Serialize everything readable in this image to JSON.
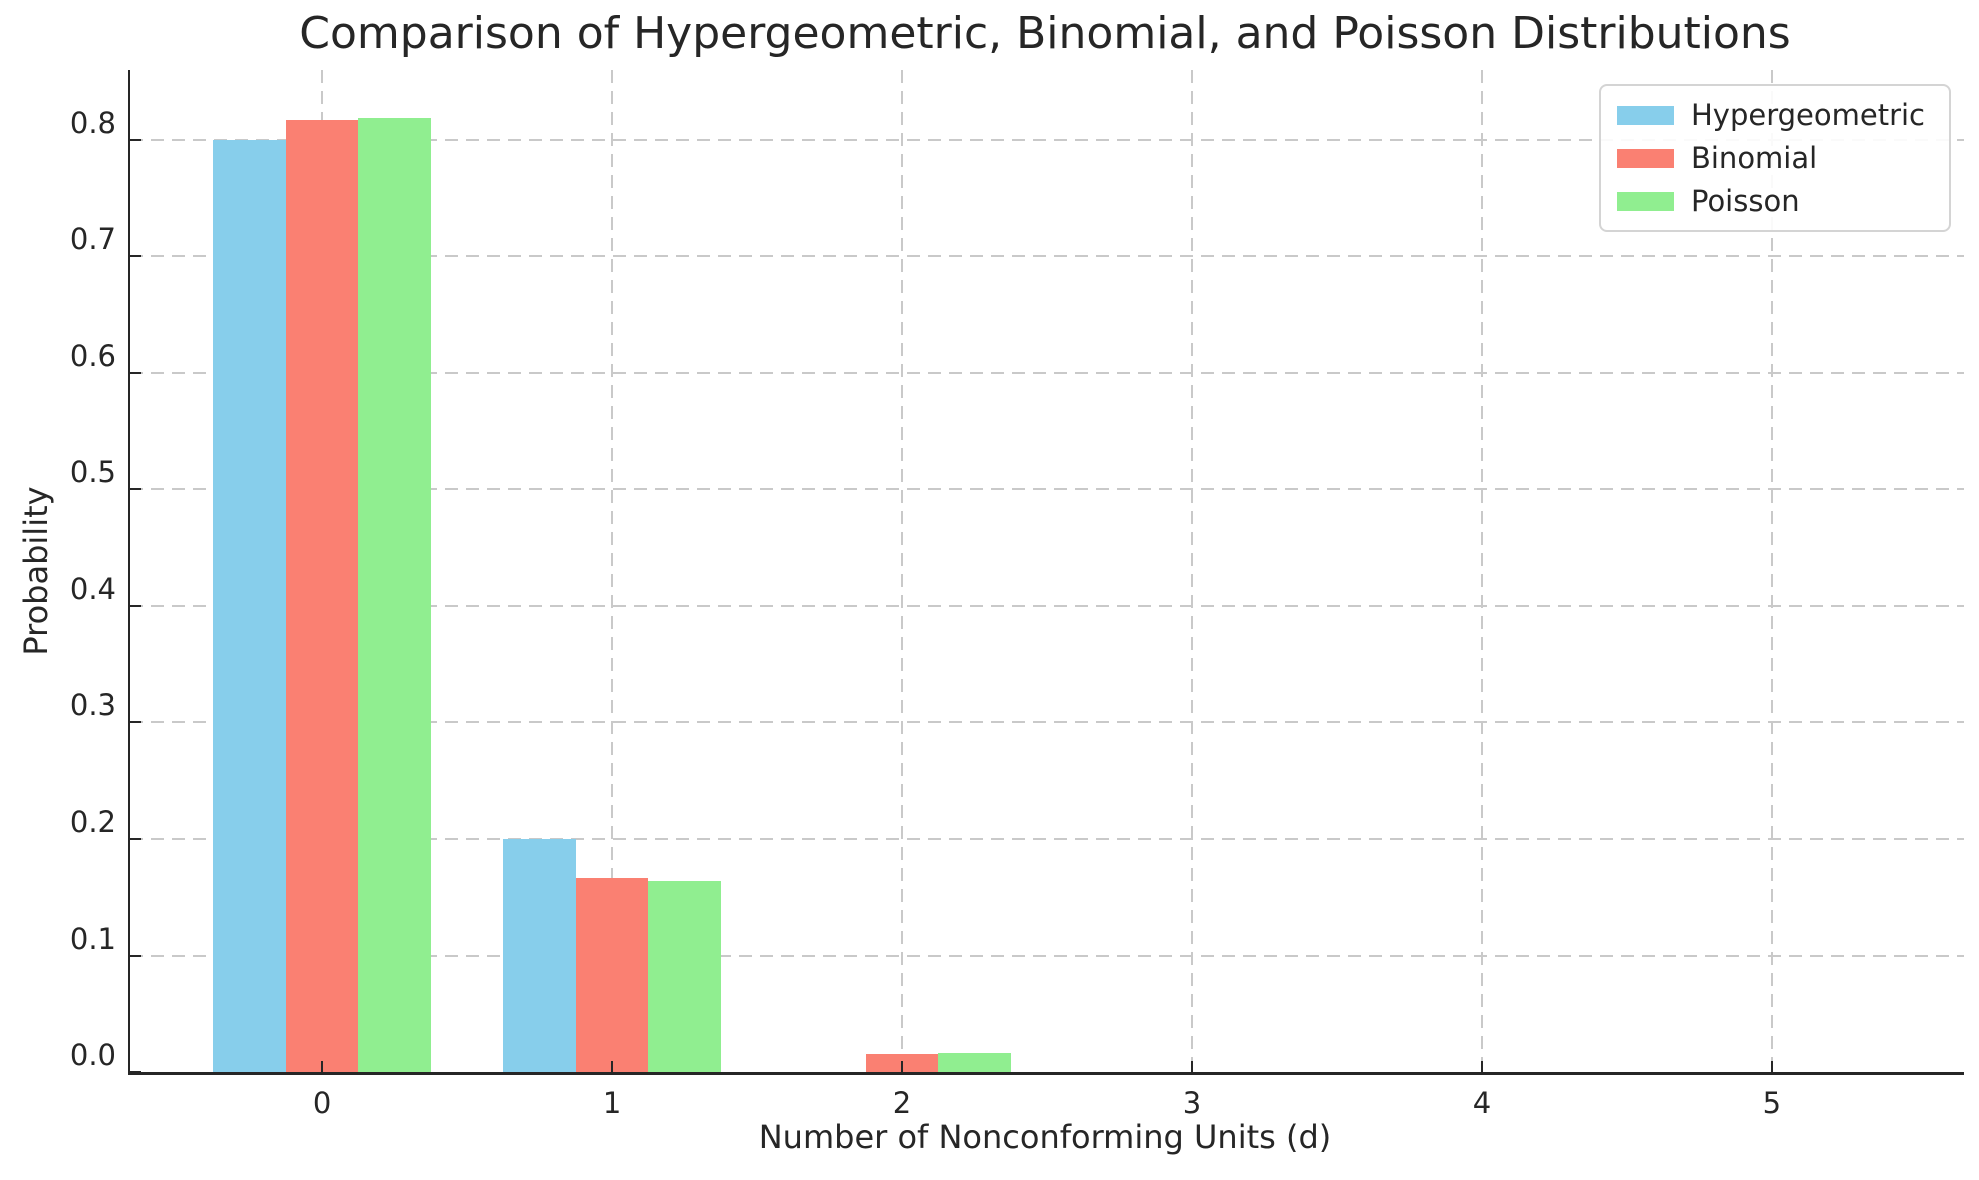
{
  "chart_data": {
    "type": "bar",
    "title": "Comparison of Hypergeometric, Binomial, and Poisson Distributions",
    "xlabel": "Number of Nonconforming Units (d)",
    "ylabel": "Probability",
    "categories": [
      "0",
      "1",
      "2",
      "3",
      "4",
      "5"
    ],
    "series": [
      {
        "name": "Hypergeometric",
        "color": "#87CEEB",
        "values": [
          0.8,
          0.2,
          0.0,
          0.0,
          0.0,
          0.0
        ]
      },
      {
        "name": "Binomial",
        "color": "#FA8072",
        "values": [
          0.8171,
          0.1667,
          0.0153,
          0.0008,
          0.0,
          0.0
        ]
      },
      {
        "name": "Poisson",
        "color": "#90EE90",
        "values": [
          0.8187,
          0.1637,
          0.0164,
          0.0011,
          0.0001,
          0.0
        ]
      }
    ],
    "bar_width": 0.25,
    "group_offsets": [
      -0.25,
      0,
      0.25
    ],
    "xlim": [
      -0.6625,
      5.6625
    ],
    "ylim": [
      0,
      0.86
    ],
    "yticks": [
      0.0,
      0.1,
      0.2,
      0.3,
      0.4,
      0.5,
      0.6,
      0.7,
      0.8
    ],
    "ytick_labels": [
      "0.0",
      "0.1",
      "0.2",
      "0.3",
      "0.4",
      "0.5",
      "0.6",
      "0.7",
      "0.8"
    ],
    "grid": true,
    "grid_style": "dashed",
    "legend_position": "upper right",
    "legend_labels": [
      "Hypergeometric",
      "Binomial",
      "Poisson"
    ]
  },
  "colors": {
    "background": "#ffffff",
    "text": "#262626",
    "spine": "#262626",
    "grid": "#c9c9c9",
    "legend_border": "#d4d4d4",
    "hypergeometric": "#87CEEB",
    "binomial": "#FA8072",
    "poisson": "#90EE90"
  }
}
